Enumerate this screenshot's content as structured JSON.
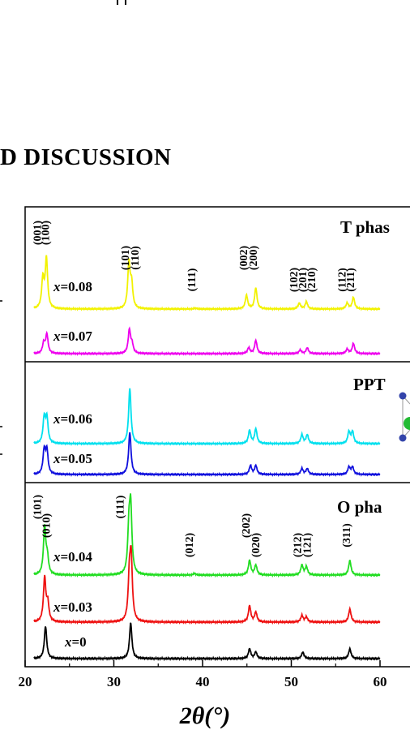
{
  "heading": "D DISCUSSION",
  "chart_data": {
    "type": "line",
    "xlabel": "2θ(°)",
    "xlim": [
      20,
      60
    ],
    "x_ticks": [
      20,
      30,
      40,
      50,
      60
    ],
    "panels": [
      {
        "title": "T phas",
        "peak_labels": [
          {
            "label": "(001)",
            "x": 21.8
          },
          {
            "label": "(100)",
            "x": 22.7
          },
          {
            "label": "(101)",
            "x": 31.7
          },
          {
            "label": "(110)",
            "x": 32.8
          },
          {
            "label": "(111)",
            "x": 39.2
          },
          {
            "label": "(002)",
            "x": 45.0
          },
          {
            "label": "(200)",
            "x": 46.1
          },
          {
            "label": "(102)",
            "x": 50.7
          },
          {
            "label": "(201)",
            "x": 51.7
          },
          {
            "label": "(210)",
            "x": 52.7
          },
          {
            "label": "(112)",
            "x": 56.1
          },
          {
            "label": "(211)",
            "x": 57.1
          }
        ],
        "series": [
          {
            "name": "x=0.08",
            "color": "#f2f200",
            "peaks": [
              [
                22.0,
                1.0
              ],
              [
                22.4,
                1.7
              ],
              [
                31.7,
                1.55
              ],
              [
                32.0,
                0.8
              ],
              [
                39.2,
                0.03
              ],
              [
                44.95,
                0.47
              ],
              [
                46.0,
                0.72
              ],
              [
                50.9,
                0.2
              ],
              [
                51.7,
                0.25
              ],
              [
                56.3,
                0.2
              ],
              [
                57.0,
                0.4
              ]
            ]
          },
          {
            "name": "x=0.07",
            "color": "#ee00ee",
            "peaks": [
              [
                22.1,
                0.35
              ],
              [
                22.45,
                0.65
              ],
              [
                31.75,
                0.8
              ],
              [
                32.05,
                0.3
              ],
              [
                45.2,
                0.2
              ],
              [
                46.0,
                0.45
              ],
              [
                51.0,
                0.12
              ],
              [
                51.8,
                0.2
              ],
              [
                56.3,
                0.15
              ],
              [
                57.0,
                0.35
              ]
            ]
          }
        ]
      },
      {
        "title": "PPT",
        "peak_labels": [],
        "series": [
          {
            "name": "x=0.06",
            "color": "#00e0ee",
            "peaks": [
              [
                22.15,
                0.85
              ],
              [
                22.45,
                0.85
              ],
              [
                31.8,
                1.9
              ],
              [
                45.3,
                0.45
              ],
              [
                46.0,
                0.5
              ],
              [
                51.2,
                0.3
              ],
              [
                51.8,
                0.3
              ],
              [
                56.5,
                0.4
              ],
              [
                56.9,
                0.4
              ]
            ]
          },
          {
            "name": "x=0.05",
            "color": "#1010dd",
            "peaks": [
              [
                22.15,
                0.8
              ],
              [
                22.45,
                0.8
              ],
              [
                31.8,
                1.45
              ],
              [
                45.4,
                0.3
              ],
              [
                46.0,
                0.3
              ],
              [
                51.2,
                0.2
              ],
              [
                51.8,
                0.2
              ],
              [
                56.5,
                0.25
              ],
              [
                56.9,
                0.25
              ]
            ]
          }
        ]
      },
      {
        "title": "O pha",
        "peak_labels": [
          {
            "label": "(101)",
            "x": 21.8
          },
          {
            "label": "(010)",
            "x": 22.8
          },
          {
            "label": "(111)",
            "x": 31.1
          },
          {
            "label": "(012)",
            "x": 38.9
          },
          {
            "label": "(202)",
            "x": 45.3
          },
          {
            "label": "(020)",
            "x": 46.4
          },
          {
            "label": "(212)",
            "x": 51.1
          },
          {
            "label": "(121)",
            "x": 52.2
          },
          {
            "label": "(311)",
            "x": 56.6
          }
        ],
        "series": [
          {
            "name": "x=0.04",
            "color": "#22dd22",
            "peaks": [
              [
                22.2,
                1.45
              ],
              [
                22.5,
                0.5
              ],
              [
                31.7,
                1.3
              ],
              [
                31.9,
                1.95
              ],
              [
                39.1,
                0.05
              ],
              [
                45.3,
                0.45
              ],
              [
                46.0,
                0.3
              ],
              [
                51.2,
                0.3
              ],
              [
                51.7,
                0.25
              ],
              [
                56.6,
                0.45
              ]
            ]
          },
          {
            "name": "x=0.03",
            "color": "#ee1111",
            "peaks": [
              [
                22.2,
                1.35
              ],
              [
                22.55,
                0.55
              ],
              [
                31.75,
                1.25
              ],
              [
                31.95,
                1.85
              ],
              [
                45.3,
                0.5
              ],
              [
                46.0,
                0.3
              ],
              [
                51.2,
                0.2
              ],
              [
                51.7,
                0.15
              ],
              [
                56.6,
                0.4
              ]
            ]
          },
          {
            "name": "x=0",
            "color": "#000000",
            "peaks": [
              [
                22.3,
                1.0
              ],
              [
                31.9,
                1.1
              ],
              [
                45.3,
                0.3
              ],
              [
                46.0,
                0.2
              ],
              [
                51.3,
                0.2
              ],
              [
                56.6,
                0.3
              ]
            ]
          }
        ]
      }
    ]
  }
}
